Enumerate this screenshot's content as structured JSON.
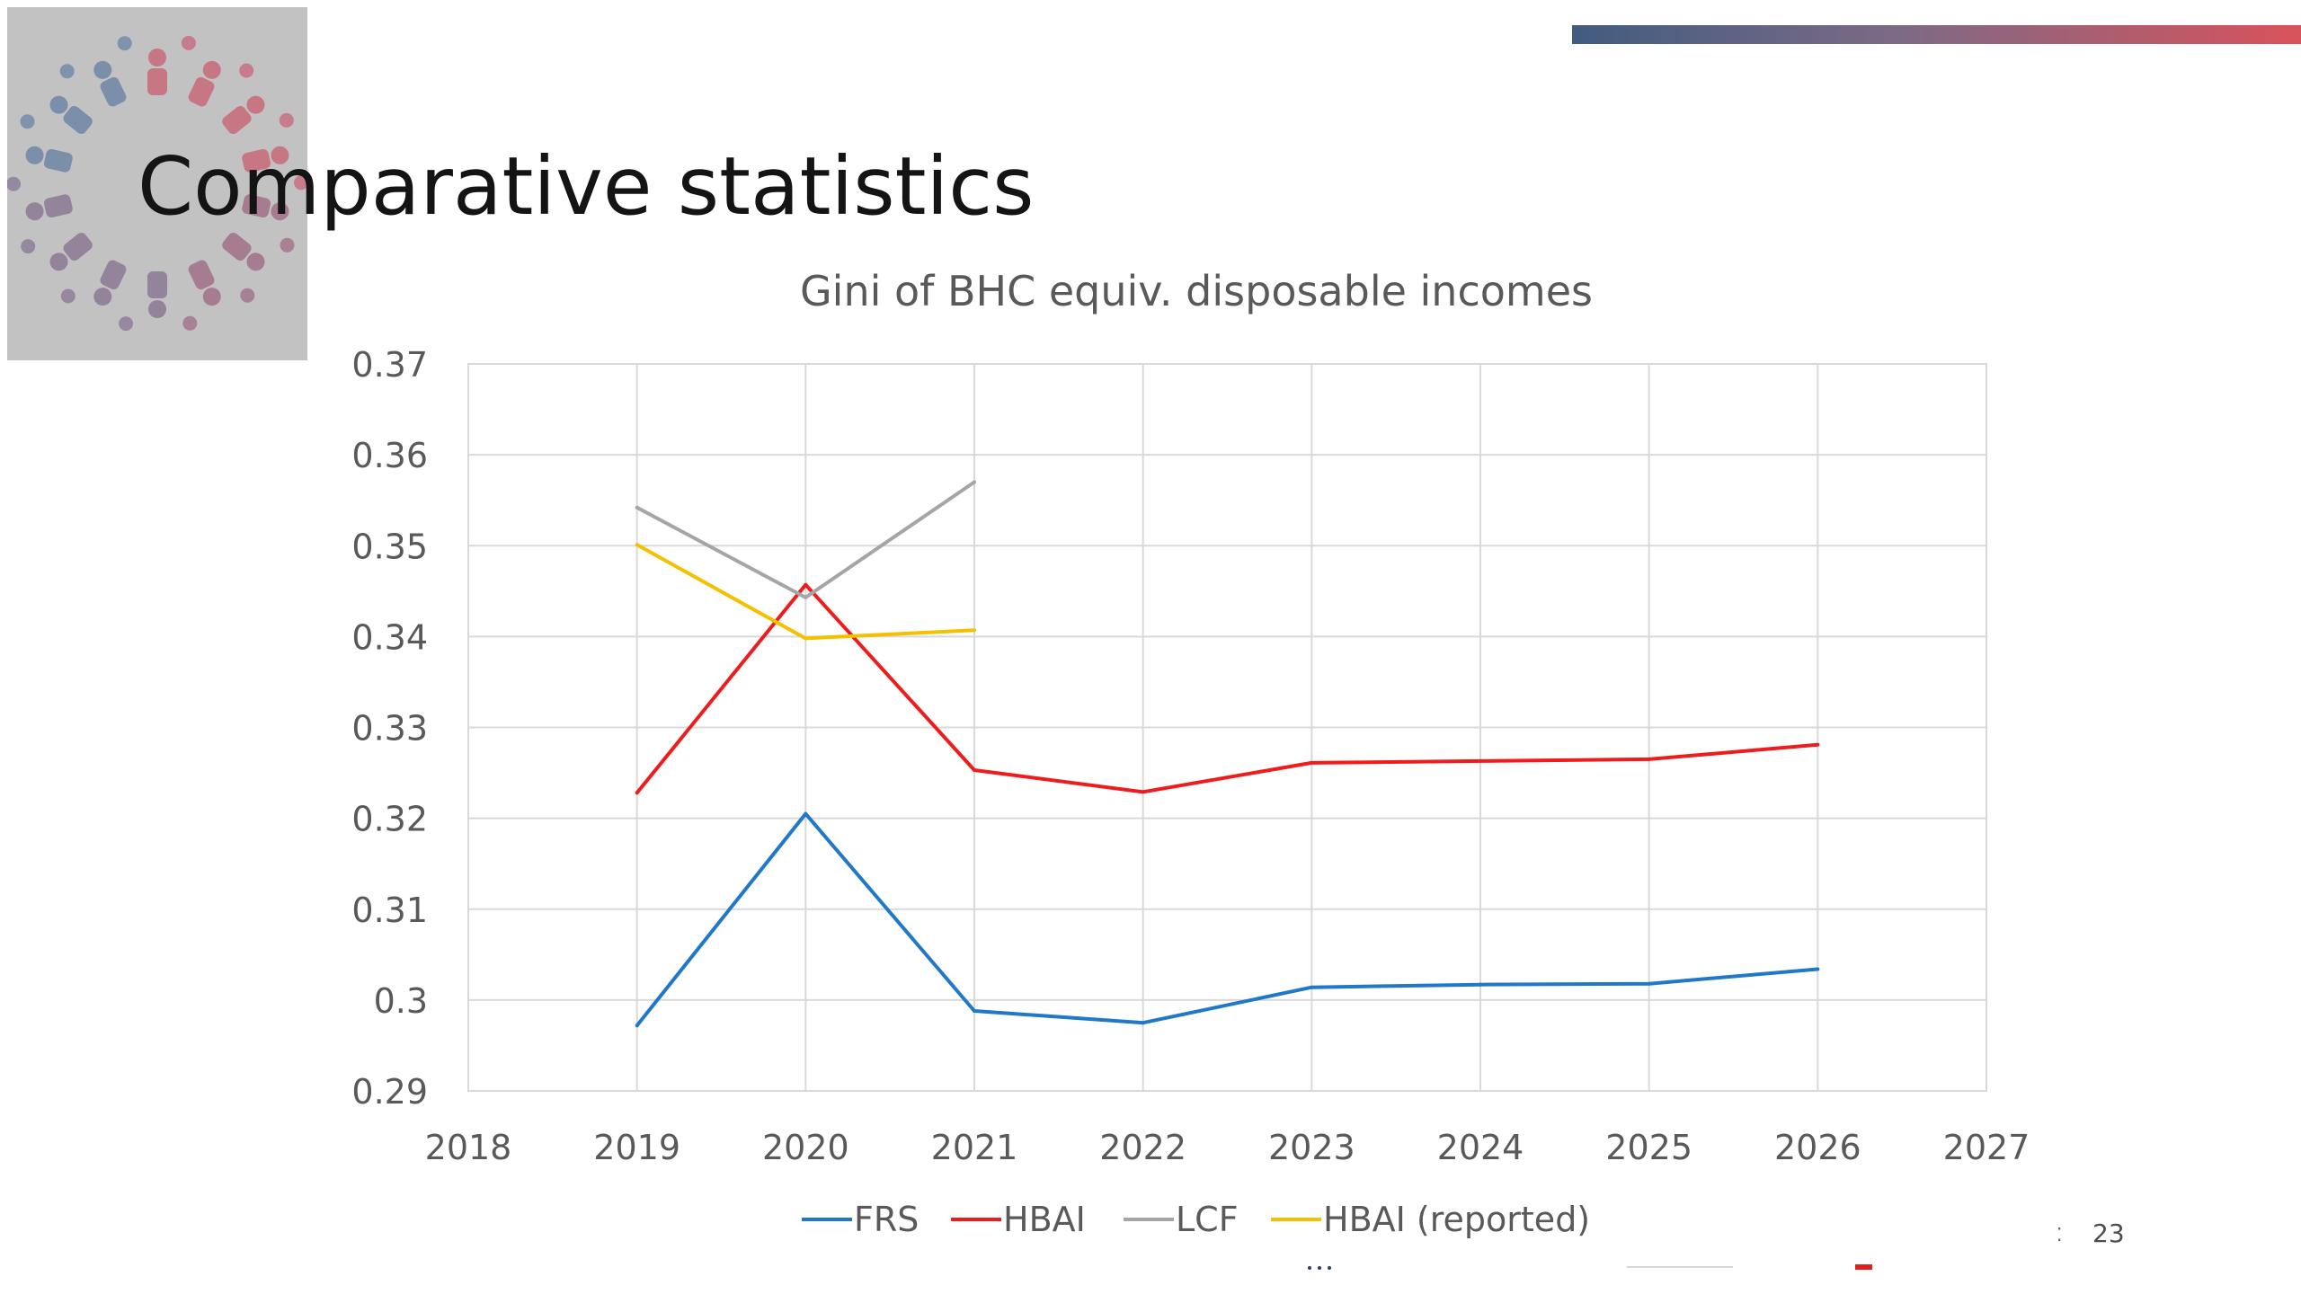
{
  "slide": {
    "title": "Comparative statistics",
    "page_number": "23"
  },
  "colors": {
    "logo_background": "#c2c2c2",
    "top_bar_start": "#415c80",
    "top_bar_end": "#d9525b"
  },
  "chart_data": {
    "type": "line",
    "title": "Gini of BHC equiv. disposable incomes",
    "xlabel": "",
    "ylabel": "",
    "xlim": [
      2018,
      2027
    ],
    "ylim": [
      0.29,
      0.37
    ],
    "x_ticks": [
      "2018",
      "2019",
      "2020",
      "2021",
      "2022",
      "2023",
      "2024",
      "2025",
      "2026",
      "2027"
    ],
    "y_ticks": [
      "0.29",
      "0.3",
      "0.31",
      "0.32",
      "0.33",
      "0.34",
      "0.35",
      "0.36",
      "0.37"
    ],
    "grid": true,
    "legend_position": "bottom",
    "series": [
      {
        "name": "FRS",
        "color": "#1f78c8",
        "x": [
          2019,
          2020,
          2021,
          2022,
          2023,
          2024,
          2025,
          2026
        ],
        "y": [
          0.2972,
          0.3205,
          0.2988,
          0.2975,
          0.3014,
          0.3017,
          0.3018,
          0.3034
        ]
      },
      {
        "name": "HBAI",
        "color": "#ee1c1c",
        "x": [
          2019,
          2020,
          2021,
          2022,
          2023,
          2024,
          2025,
          2026
        ],
        "y": [
          0.3228,
          0.3457,
          0.3253,
          0.3229,
          0.3261,
          0.3263,
          0.3265,
          0.3281
        ]
      },
      {
        "name": "LCF",
        "color": "#a5a5a5",
        "x": [
          2019,
          2020,
          2021
        ],
        "y": [
          0.3542,
          0.3443,
          0.357
        ]
      },
      {
        "name": "HBAI (reported)",
        "color": "#f5c000",
        "x": [
          2019,
          2020,
          2021
        ],
        "y": [
          0.3501,
          0.3398,
          0.3407
        ]
      }
    ]
  }
}
